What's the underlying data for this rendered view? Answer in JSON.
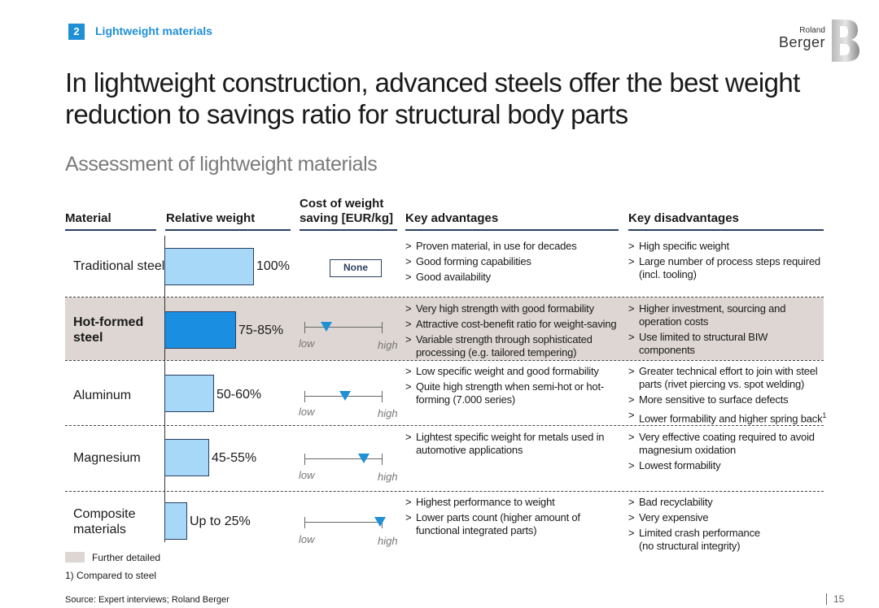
{
  "section": {
    "number": "2",
    "title": "Lightweight materials"
  },
  "logo": {
    "line1": "Roland",
    "line2": "Berger"
  },
  "headline": "In lightweight construction, advanced steels offer the best weight reduction to savings ratio for structural body parts",
  "subheadline": "Assessment of lightweight materials",
  "columns": {
    "material": "Material",
    "relative_weight": "Relative weight",
    "cost_line1": "Cost of weight",
    "cost_line2": "saving [EUR/kg]",
    "advantages": "Key advantages",
    "disadvantages": "Key disadvantages"
  },
  "scale_labels": {
    "low": "low",
    "high": "high"
  },
  "rows": [
    {
      "material_lines": [
        "Traditional steel"
      ],
      "weight_label": "100%",
      "weight_fraction": 1.0,
      "cost_label": "None",
      "cost_position": null,
      "highlighted": false,
      "advantages": [
        "Proven material, in use for decades",
        "Good forming capabilities",
        "Good availability"
      ],
      "disadvantages": [
        "High specific weight",
        "Large number of process steps required (incl. tooling)"
      ]
    },
    {
      "material_lines": [
        "Hot-formed",
        "steel"
      ],
      "weight_label": "75-85%",
      "weight_fraction": 0.8,
      "cost_label": "",
      "cost_position": 0.28,
      "highlighted": true,
      "advantages": [
        "Very high strength with good formability",
        "Attractive cost-benefit ratio for weight-saving",
        "Variable strength through sophisticated processing (e.g. tailored tempering)"
      ],
      "disadvantages": [
        "Higher investment, sourcing and operation costs",
        "Use limited to structural BIW components"
      ]
    },
    {
      "material_lines": [
        "Aluminum"
      ],
      "weight_label": "50-60%",
      "weight_fraction": 0.55,
      "cost_label": "",
      "cost_position": 0.52,
      "highlighted": false,
      "advantages": [
        "Low specific weight and good formability",
        "Quite high strength when semi-hot or hot-forming (7.000 series)"
      ],
      "disadvantages": [
        "Greater technical effort to join with steel parts (rivet piercing vs. spot welding)",
        "More sensitive to surface defects",
        "Lower formability and higher spring back"
      ]
    },
    {
      "material_lines": [
        "Magnesium"
      ],
      "weight_label": "45-55%",
      "weight_fraction": 0.5,
      "cost_label": "",
      "cost_position": 0.76,
      "highlighted": false,
      "advantages": [
        "Lightest specific weight for metals used in automotive applications"
      ],
      "disadvantages": [
        "Very effective coating required to avoid magnesium oxidation",
        "Lowest formability"
      ]
    },
    {
      "material_lines": [
        "Composite",
        "materials"
      ],
      "weight_label": "Up to 25%",
      "weight_fraction": 0.25,
      "cost_label": "",
      "cost_position": 0.97,
      "highlighted": false,
      "advantages": [
        "Highest performance to weight",
        "Lower parts count (higher amount of functional integrated parts)"
      ],
      "disadvantages": [
        "Bad recyclability",
        "Very expensive",
        "Limited crash performance (no structural integrity)"
      ]
    }
  ],
  "footnote_marker": "1",
  "legend_text": "Further detailed",
  "footnote": "1) Compared to steel",
  "source": "Source: Expert interviews; Roland Berger",
  "page_number": "15"
}
